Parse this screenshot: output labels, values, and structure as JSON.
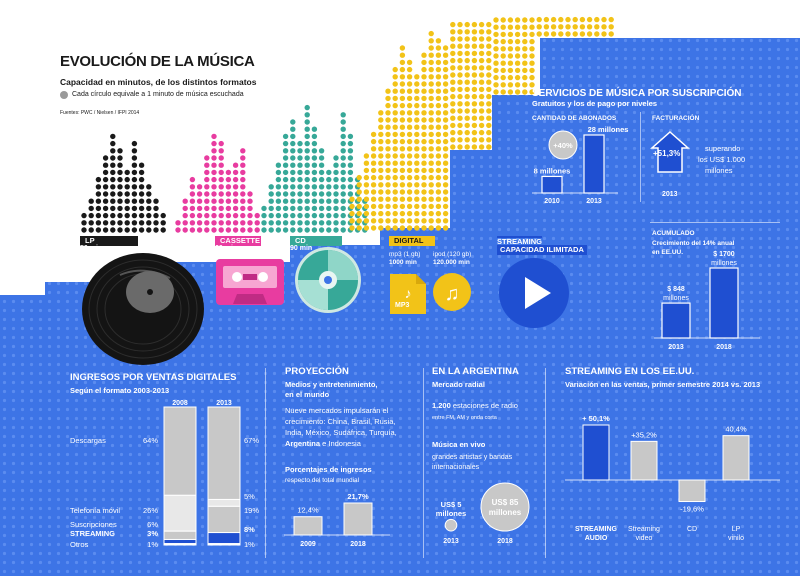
{
  "colors": {
    "blue_bg": "#3d74e6",
    "dark_blue": "#1f4fd1",
    "gray_bar": "#c8c8c8",
    "light_gray": "#e8e8e8",
    "black_dots": "#1a1a1a",
    "magenta_dots": "#e83ca0",
    "teal_dots": "#37a898",
    "yellow_dots": "#f2c318",
    "label_bg_lp": "#1a1a1a",
    "label_bg_cassette": "#e83ca0",
    "label_bg_cd": "#37a898",
    "label_bg_digital": "#f2c318",
    "label_bg_streaming": "#1f4fd1"
  },
  "header": {
    "title": "EVOLUCIÓN DE LA MÚSICA",
    "subtitle": "Capacidad en minutos, de los distintos formatos",
    "legend": "Cada círculo equivale a 1 minuto de música escuchada",
    "sources": "Fuentes: PWC / Nielsen / IFPI 2014"
  },
  "formats": {
    "lp": {
      "name": "LP",
      "minutes": "50 min"
    },
    "cassette": {
      "name": "CASSETTE",
      "minutes": "60 min"
    },
    "cd": {
      "name": "CD",
      "minutes": "90 min"
    },
    "digital": {
      "name": "DIGITAL",
      "mp3_label": "mp3 (1 gb)",
      "mp3_value": "1000 min",
      "ipod_label": "ipod (120 gb)",
      "ipod_value": "120.000 min",
      "mp3_icon_text": "MP3"
    },
    "streaming": {
      "name": "STREAMING",
      "capacity": "CAPACIDAD ILIMITADA"
    }
  },
  "subscription": {
    "title": "SERVICIOS DE MÚSICA POR SUSCRIPCIÓN",
    "subtitle": "Gratuitos y los de pago por niveles",
    "abonados": {
      "title": "CANTIDAD DE ABONADOS",
      "growth": "+40%",
      "bars": [
        {
          "year": "2010",
          "label": "8 millones",
          "value": 8
        },
        {
          "year": "2013",
          "label": "28 millones",
          "value": 28
        }
      ]
    },
    "facturacion": {
      "title": "FACTURACIÓN",
      "growth": "+51,3%",
      "text1": "superando",
      "text2": "los US$ 1.000",
      "text3": "millones",
      "year": "2013"
    },
    "acumulado": {
      "title": "ACUMULADO",
      "subtitle1": "Crecimiento del 14% anual",
      "subtitle2": "en EE.UU.",
      "bars": [
        {
          "year": "2013",
          "label1": "$ 848",
          "label2": "millones",
          "value": 848
        },
        {
          "year": "2018",
          "label1": "$ 1700",
          "label2": "millones",
          "value": 1700
        }
      ]
    }
  },
  "ingresos": {
    "title": "INGRESOS POR VENTAS DIGITALES",
    "subtitle": "Según el formato 2003-2013",
    "years": [
      "2008",
      "2013"
    ],
    "rows": [
      {
        "name": "Descargas",
        "v2008": "64%",
        "v2013": "67%",
        "p2008": 64,
        "p2013": 67
      },
      {
        "name": "Telefonía móvil",
        "v2008": "26%",
        "v2013": "5%",
        "p2008": 26,
        "p2013": 5
      },
      {
        "name": "Suscripciones",
        "v2008": "6%",
        "v2013": "19%",
        "p2008": 6,
        "p2013": 19
      },
      {
        "name": "STREAMING",
        "v2008": "3%",
        "v2013": "8%",
        "p2008": 3,
        "p2013": 8
      },
      {
        "name": "Otros",
        "v2008": "1%",
        "v2013": "1%",
        "p2008": 1,
        "p2013": 1
      }
    ]
  },
  "proyeccion": {
    "title": "PROYECCIÓN",
    "sub1": "Medios y entretenimiento,",
    "sub2": "en el mundo",
    "text_lines": [
      "Nueve mercados impulsarán el",
      "crecimiento: China, Brasil, Rusia,",
      "India, México, Sudáfrica, Turquía,"
    ],
    "text_last_bold": "Argentina",
    "text_last_rest": " e Indonesia",
    "pct_title": "Porcentajes de ingresos",
    "pct_sub": "respecto del total mundial",
    "bars": [
      {
        "year": "2009",
        "label": "12,4%",
        "value": 12.4
      },
      {
        "year": "2018",
        "label": "21,7%",
        "value": 21.7
      }
    ]
  },
  "argentina": {
    "title": "EN LA ARGENTINA",
    "radio_title": "Mercado radial",
    "radio_count": "1.200",
    "radio_text": " estaciones de radio",
    "radio_sub": "entre FM, AM y onda corta",
    "vivo_title": "Música en vivo",
    "vivo_sub1": "grandes artistas y bandas",
    "vivo_sub2": "internacionales",
    "bubbles": [
      {
        "year": "2013",
        "label1": "US$ 5",
        "label2": "millones",
        "value": 5
      },
      {
        "year": "2018",
        "label1": "US$ 85",
        "label2": "millones",
        "value": 85
      }
    ]
  },
  "streaming_usa": {
    "title": "STREAMING EN LOS EE.UU.",
    "subtitle": "Variación en las ventas, primer semestre 2014 vs. 2013",
    "bars": [
      {
        "name1": "STREAMING",
        "name2": "AUDIO",
        "label": "+ 50,1%",
        "value": 50.1
      },
      {
        "name1": "Streaming",
        "name2": "video",
        "label": "+35,2%",
        "value": 35.2
      },
      {
        "name1": "CD",
        "name2": "",
        "label": "-19,6%",
        "value": -19.6
      },
      {
        "name1": "LP",
        "name2": "vinilo",
        "label": "40,4%",
        "value": 40.4
      }
    ]
  }
}
